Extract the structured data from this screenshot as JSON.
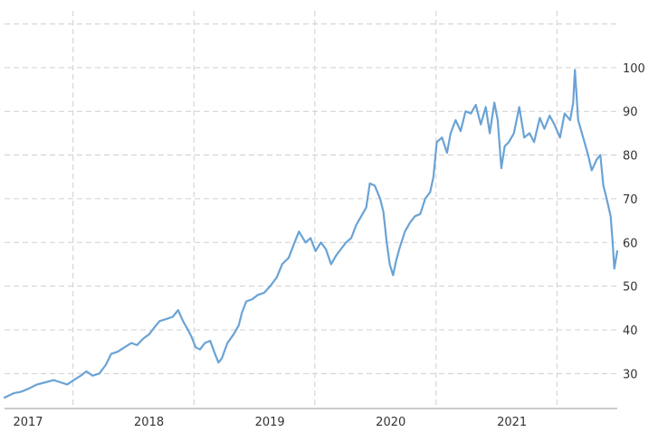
{
  "chart_data": {
    "type": "line",
    "title": "",
    "xlabel": "",
    "ylabel": "",
    "grid": true,
    "legend": "none",
    "y_ticks": [
      "30",
      "40",
      "50",
      "60",
      "70",
      "80",
      "90",
      "100"
    ],
    "y_range": [
      22,
      113
    ],
    "x_ticks": [
      {
        "label": "2017",
        "date": "2017-01-01"
      },
      {
        "label": "2018",
        "date": "2018-01-01"
      },
      {
        "label": "2019",
        "date": "2019-01-01"
      },
      {
        "label": "2020",
        "date": "2020-01-01"
      },
      {
        "label": "2021",
        "date": "2021-01-01"
      }
    ],
    "x_range": [
      "2016-12-28",
      "2022-01-21"
    ],
    "line_color": "#6aa3d5",
    "series": [
      {
        "values": [
          [
            "2016-12-28",
            24.5
          ],
          [
            "2017-01-25",
            25.5
          ],
          [
            "2017-02-15",
            25.8
          ],
          [
            "2017-03-10",
            26.5
          ],
          [
            "2017-04-05",
            27.5
          ],
          [
            "2017-05-01",
            28.0
          ],
          [
            "2017-05-25",
            28.5
          ],
          [
            "2017-06-15",
            28.0
          ],
          [
            "2017-07-05",
            27.5
          ],
          [
            "2017-07-25",
            28.5
          ],
          [
            "2017-08-15",
            29.5
          ],
          [
            "2017-09-01",
            30.5
          ],
          [
            "2017-09-20",
            29.5
          ],
          [
            "2017-10-10",
            30.0
          ],
          [
            "2017-10-30",
            32.0
          ],
          [
            "2017-11-15",
            34.5
          ],
          [
            "2017-12-05",
            35.0
          ],
          [
            "2017-12-25",
            36.0
          ],
          [
            "2018-01-15",
            37.0
          ],
          [
            "2018-02-01",
            36.5
          ],
          [
            "2018-02-20",
            38.0
          ],
          [
            "2018-03-10",
            39.0
          ],
          [
            "2018-03-25",
            40.5
          ],
          [
            "2018-04-10",
            42.0
          ],
          [
            "2018-05-01",
            42.5
          ],
          [
            "2018-05-20",
            43.0
          ],
          [
            "2018-06-05",
            44.5
          ],
          [
            "2018-06-20",
            42.0
          ],
          [
            "2018-07-05",
            40.0
          ],
          [
            "2018-07-15",
            38.5
          ],
          [
            "2018-07-28",
            36.0
          ],
          [
            "2018-08-10",
            35.5
          ],
          [
            "2018-08-25",
            37.0
          ],
          [
            "2018-09-10",
            37.5
          ],
          [
            "2018-09-22",
            35.0
          ],
          [
            "2018-10-05",
            32.5
          ],
          [
            "2018-10-15",
            33.5
          ],
          [
            "2018-11-01",
            37.0
          ],
          [
            "2018-11-20",
            39.0
          ],
          [
            "2018-12-05",
            41.0
          ],
          [
            "2018-12-15",
            44.0
          ],
          [
            "2018-12-28",
            46.5
          ],
          [
            "2019-01-15",
            47.0
          ],
          [
            "2019-02-01",
            48.0
          ],
          [
            "2019-02-20",
            48.5
          ],
          [
            "2019-03-10",
            50.0
          ],
          [
            "2019-03-30",
            52.0
          ],
          [
            "2019-04-15",
            55.0
          ],
          [
            "2019-05-05",
            56.5
          ],
          [
            "2019-05-20",
            59.5
          ],
          [
            "2019-06-05",
            62.5
          ],
          [
            "2019-06-25",
            60.0
          ],
          [
            "2019-07-10",
            61.0
          ],
          [
            "2019-07-25",
            58.0
          ],
          [
            "2019-08-10",
            60.0
          ],
          [
            "2019-08-25",
            58.5
          ],
          [
            "2019-09-10",
            55.0
          ],
          [
            "2019-09-25",
            57.0
          ],
          [
            "2019-10-10",
            58.5
          ],
          [
            "2019-10-25",
            60.0
          ],
          [
            "2019-11-10",
            61.0
          ],
          [
            "2019-11-25",
            64.0
          ],
          [
            "2019-12-10",
            66.0
          ],
          [
            "2019-12-25",
            68.0
          ],
          [
            "2020-01-05",
            73.5
          ],
          [
            "2020-01-20",
            73.0
          ],
          [
            "2020-02-05",
            70.0
          ],
          [
            "2020-02-15",
            67.0
          ],
          [
            "2020-02-25",
            60.0
          ],
          [
            "2020-03-05",
            55.0
          ],
          [
            "2020-03-15",
            52.5
          ],
          [
            "2020-03-25",
            56.0
          ],
          [
            "2020-04-05",
            59.0
          ],
          [
            "2020-04-20",
            62.5
          ],
          [
            "2020-05-05",
            64.5
          ],
          [
            "2020-05-20",
            66.0
          ],
          [
            "2020-06-05",
            66.5
          ],
          [
            "2020-06-20",
            70.0
          ],
          [
            "2020-07-05",
            71.5
          ],
          [
            "2020-07-15",
            75.0
          ],
          [
            "2020-07-25",
            83.0
          ],
          [
            "2020-08-10",
            84.0
          ],
          [
            "2020-08-25",
            80.5
          ],
          [
            "2020-09-05",
            85.0
          ],
          [
            "2020-09-20",
            88.0
          ],
          [
            "2020-10-05",
            85.5
          ],
          [
            "2020-10-20",
            90.0
          ],
          [
            "2020-11-05",
            89.5
          ],
          [
            "2020-11-20",
            91.5
          ],
          [
            "2020-12-05",
            87.0
          ],
          [
            "2020-12-20",
            91.0
          ],
          [
            "2021-01-01",
            85.0
          ],
          [
            "2021-01-15",
            92.0
          ],
          [
            "2021-01-25",
            88.0
          ],
          [
            "2021-02-05",
            77.0
          ],
          [
            "2021-02-15",
            82.0
          ],
          [
            "2021-02-28",
            83.0
          ],
          [
            "2021-03-15",
            85.0
          ],
          [
            "2021-03-31",
            91.0
          ],
          [
            "2021-04-15",
            84.0
          ],
          [
            "2021-05-01",
            85.0
          ],
          [
            "2021-05-15",
            83.0
          ],
          [
            "2021-06-01",
            88.5
          ],
          [
            "2021-06-15",
            86.0
          ],
          [
            "2021-07-01",
            89.0
          ],
          [
            "2021-07-15",
            87.0
          ],
          [
            "2021-08-01",
            84.0
          ],
          [
            "2021-08-15",
            89.5
          ],
          [
            "2021-09-01",
            88.0
          ],
          [
            "2021-09-10",
            92.0
          ],
          [
            "2021-09-15",
            99.5
          ],
          [
            "2021-09-25",
            88.0
          ],
          [
            "2021-10-10",
            84.0
          ],
          [
            "2021-10-25",
            80.0
          ],
          [
            "2021-11-05",
            76.5
          ],
          [
            "2021-11-20",
            79.0
          ],
          [
            "2021-12-01",
            80.0
          ],
          [
            "2021-12-10",
            73.0
          ],
          [
            "2021-12-20",
            70.0
          ],
          [
            "2022-01-01",
            66.0
          ],
          [
            "2022-01-07",
            60.0
          ],
          [
            "2022-01-12",
            54.0
          ],
          [
            "2022-01-21",
            58.0
          ]
        ]
      }
    ]
  }
}
